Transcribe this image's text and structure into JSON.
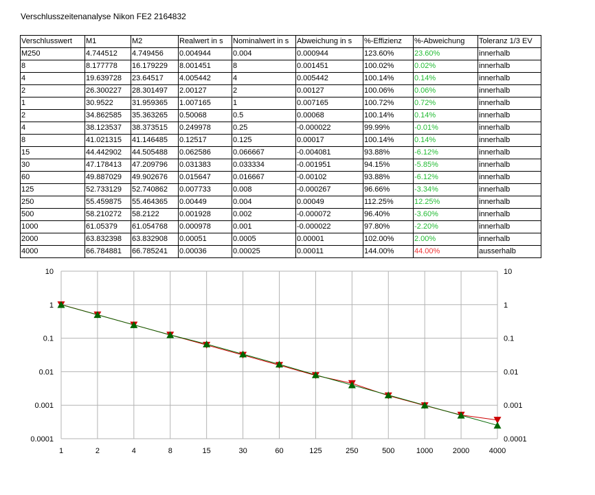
{
  "title": "Verschlusszeitenanalyse Nikon FE2 2164832",
  "colors": {
    "green_text": "#22bb33",
    "red_text": "#ee3333",
    "series_real": "#cc0000",
    "series_nominal": "#006600"
  },
  "table": {
    "headers": [
      "Verschlusswert",
      "M1",
      "M2",
      "Realwert in s",
      "Nominalwert in s",
      "Abweichung in s",
      "%-Effizienz",
      "%-Abweichung",
      "Toleranz 1/3 EV"
    ],
    "rows": [
      [
        "M250",
        "4.744512",
        "4.749456",
        "0.004944",
        "0.004",
        "0.000944",
        "123.60%",
        "23.60%",
        "innerhalb"
      ],
      [
        "8",
        "8.177778",
        "16.179229",
        "8.001451",
        "8",
        "0.001451",
        "100.02%",
        "0.02%",
        "innerhalb"
      ],
      [
        "4",
        "19.639728",
        "23.64517",
        "4.005442",
        "4",
        "0.005442",
        "100.14%",
        "0.14%",
        "innerhalb"
      ],
      [
        "2",
        "26.300227",
        "28.301497",
        "2.00127",
        "2",
        "0.00127",
        "100.06%",
        "0.06%",
        "innerhalb"
      ],
      [
        "1",
        "30.9522",
        "31.959365",
        "1.007165",
        "1",
        "0.007165",
        "100.72%",
        "0.72%",
        "innerhalb"
      ],
      [
        "2",
        "34.862585",
        "35.363265",
        "0.50068",
        "0.5",
        "0.00068",
        "100.14%",
        "0.14%",
        "innerhalb"
      ],
      [
        "4",
        "38.123537",
        "38.373515",
        "0.249978",
        "0.25",
        "-0.000022",
        "99.99%",
        "-0.01%",
        "innerhalb"
      ],
      [
        "8",
        "41.021315",
        "41.146485",
        "0.12517",
        "0.125",
        "0.00017",
        "100.14%",
        "0.14%",
        "innerhalb"
      ],
      [
        "15",
        "44.442902",
        "44.505488",
        "0.062586",
        "0.066667",
        "-0.004081",
        "93.88%",
        "-6.12%",
        "innerhalb"
      ],
      [
        "30",
        "47.178413",
        "47.209796",
        "0.031383",
        "0.033334",
        "-0.001951",
        "94.15%",
        "-5.85%",
        "innerhalb"
      ],
      [
        "60",
        "49.887029",
        "49.902676",
        "0.015647",
        "0.016667",
        "-0.00102",
        "93.88%",
        "-6.12%",
        "innerhalb"
      ],
      [
        "125",
        "52.733129",
        "52.740862",
        "0.007733",
        "0.008",
        "-0.000267",
        "96.66%",
        "-3.34%",
        "innerhalb"
      ],
      [
        "250",
        "55.459875",
        "55.464365",
        "0.00449",
        "0.004",
        "0.00049",
        "112.25%",
        "12.25%",
        "innerhalb"
      ],
      [
        "500",
        "58.210272",
        "58.2122",
        "0.001928",
        "0.002",
        "-0.000072",
        "96.40%",
        "-3.60%",
        "innerhalb"
      ],
      [
        "1000",
        "61.05379",
        "61.054768",
        "0.000978",
        "0.001",
        "-0.000022",
        "97.80%",
        "-2.20%",
        "innerhalb"
      ],
      [
        "2000",
        "63.832398",
        "63.832908",
        "0.00051",
        "0.0005",
        "0.00001",
        "102.00%",
        "2.00%",
        "innerhalb"
      ],
      [
        "4000",
        "66.784881",
        "66.785241",
        "0.00036",
        "0.00025",
        "0.00011",
        "144.00%",
        "44.00%",
        "ausserhalb"
      ]
    ],
    "deviation_color": [
      "green",
      "green",
      "green",
      "green",
      "green",
      "green",
      "green",
      "green",
      "green",
      "green",
      "green",
      "green",
      "green",
      "green",
      "green",
      "green",
      "red"
    ]
  },
  "chart_data": {
    "type": "line",
    "title": "",
    "xlabel": "",
    "ylabel": "",
    "yscale": "log",
    "ylim": [
      0.0001,
      10
    ],
    "grid": true,
    "legend": "none",
    "categories": [
      "1",
      "2",
      "4",
      "8",
      "15",
      "30",
      "60",
      "125",
      "250",
      "500",
      "1000",
      "2000",
      "4000"
    ],
    "y_ticks_left": [
      "10",
      "1",
      "0.1",
      "0.01",
      "0.001",
      "0.0001"
    ],
    "y_ticks_right": [
      "10",
      "1",
      "0.1",
      "0.01",
      "0.001",
      "0.0001"
    ],
    "series": [
      {
        "marker": "triangle-down",
        "color": "#cc0000",
        "values": [
          1.007165,
          0.50068,
          0.249978,
          0.12517,
          0.062586,
          0.031383,
          0.015647,
          0.007733,
          0.00449,
          0.001928,
          0.000978,
          0.00051,
          0.00036
        ]
      },
      {
        "marker": "triangle-up",
        "color": "#006600",
        "values": [
          1,
          0.5,
          0.25,
          0.125,
          0.066667,
          0.033334,
          0.016667,
          0.008,
          0.004,
          0.002,
          0.001,
          0.0005,
          0.00025
        ]
      }
    ]
  }
}
